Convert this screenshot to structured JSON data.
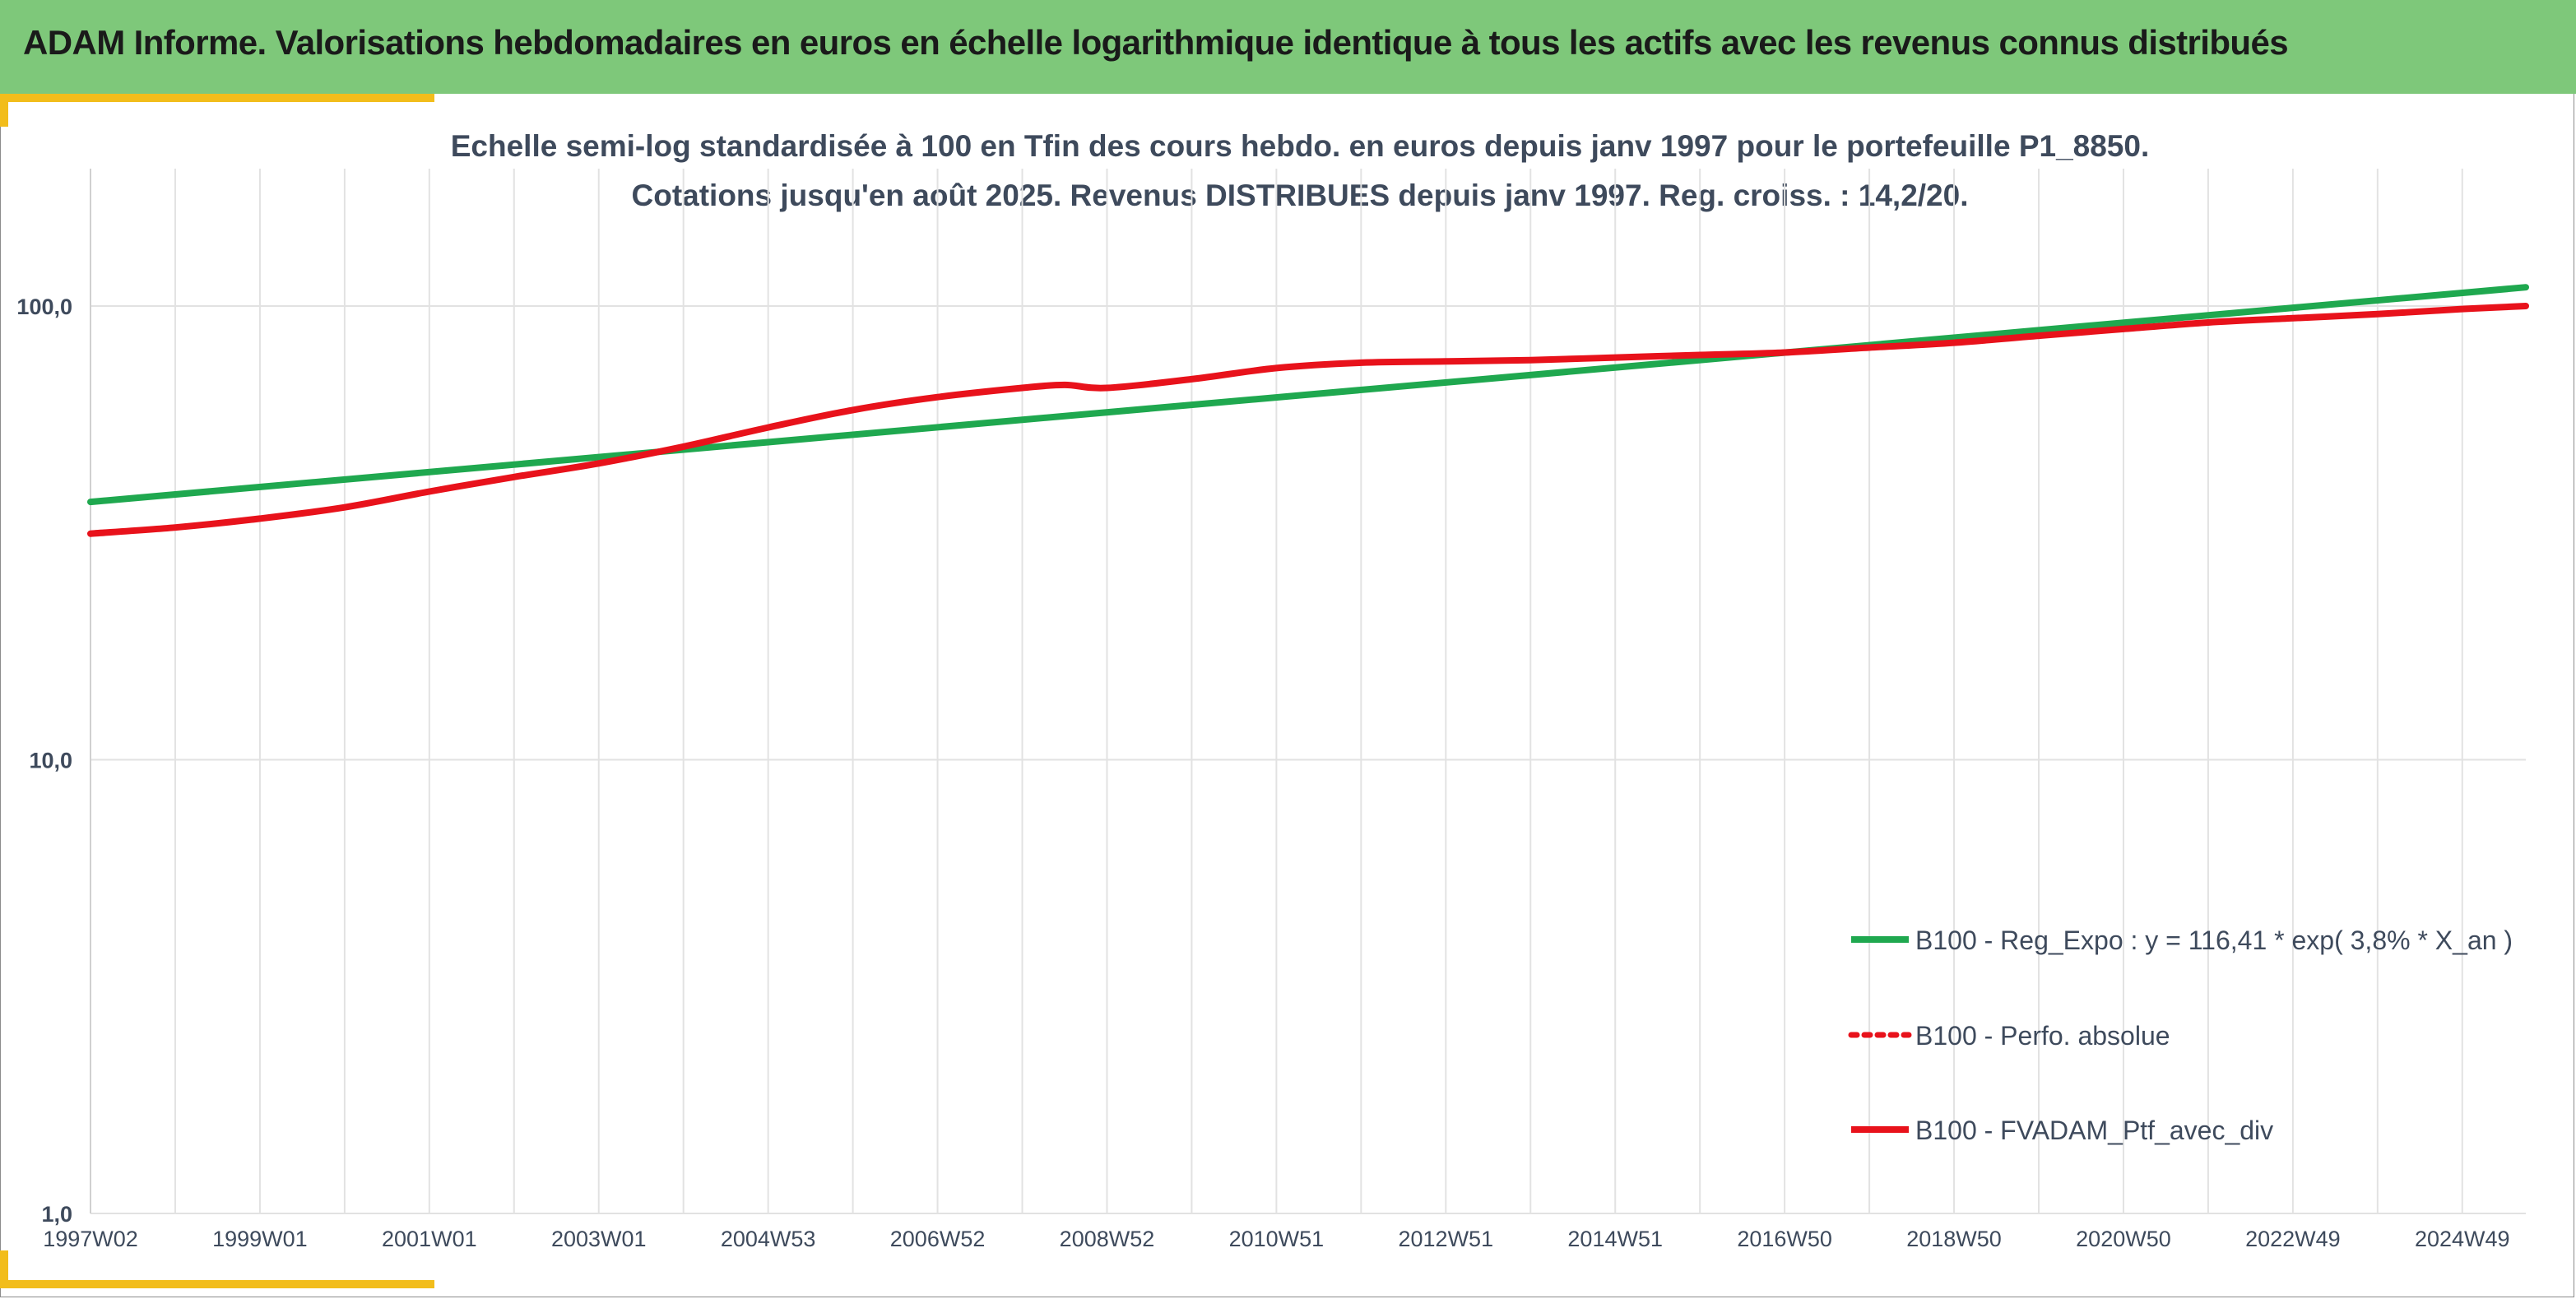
{
  "page": {
    "title": "ADAM Informe. Valorisations hebdomadaires en euros en échelle logarithmique identique à tous les actifs avec les revenus connus distribués"
  },
  "colors": {
    "banner": "#7ec87a",
    "accent": "#f2bd1b",
    "regression": "#1fa84f",
    "perf": "#e8121b",
    "grid": "#e2e2e2",
    "text": "#3e4a5c"
  },
  "chart_data": {
    "type": "line",
    "subtitle_lines": [
      "Echelle semi-log standardisée à 100 en Tfin des cours hebdo. en euros depuis janv 1997 pour le portefeuille P1_8850.",
      "Cotations jusqu'en août 2025. Revenus DISTRIBUES depuis janv 1997. Reg. croiss. : 14,2/20."
    ],
    "y_scale": "log",
    "ylim": [
      1,
      200
    ],
    "y_ticks": [
      {
        "value": 1,
        "label": "1,0"
      },
      {
        "value": 10,
        "label": "10,0"
      },
      {
        "value": 100,
        "label": "100,0"
      }
    ],
    "xlim": [
      1997.0,
      2025.75
    ],
    "x_ticks": [
      {
        "value": 1997.0,
        "label": "1997W02"
      },
      {
        "value": 1999.0,
        "label": "1999W01"
      },
      {
        "value": 2001.0,
        "label": "2001W01"
      },
      {
        "value": 2003.0,
        "label": "2003W01"
      },
      {
        "value": 2005.0,
        "label": "2004W53"
      },
      {
        "value": 2007.0,
        "label": "2006W52"
      },
      {
        "value": 2009.0,
        "label": "2008W52"
      },
      {
        "value": 2011.0,
        "label": "2010W51"
      },
      {
        "value": 2013.0,
        "label": "2012W51"
      },
      {
        "value": 2015.0,
        "label": "2014W51"
      },
      {
        "value": 2017.0,
        "label": "2016W50"
      },
      {
        "value": 2019.0,
        "label": "2018W50"
      },
      {
        "value": 2021.0,
        "label": "2020W50"
      },
      {
        "value": 2023.0,
        "label": "2022W49"
      },
      {
        "value": 2025.0,
        "label": "2024W49"
      }
    ],
    "grid": true,
    "legend_position": "bottom-right",
    "series": [
      {
        "name": "B100 - Reg_Expo : y = 116,41 * exp( 3,8% *  X_an )",
        "color": "#1fa84f",
        "style": "solid",
        "x": [
          1997.0,
          2025.75
        ],
        "y": [
          37.0,
          110.0
        ]
      },
      {
        "name": "B100 - Perfo. absolue",
        "color": "#e8121b",
        "style": "dotted",
        "x": [],
        "y": []
      },
      {
        "name": "B100 - FVADAM_Ptf_avec_div",
        "color": "#e8121b",
        "style": "solid",
        "x": [
          1997.0,
          1998.0,
          1999.0,
          2000.0,
          2001.0,
          2002.0,
          2003.0,
          2004.0,
          2005.0,
          2006.0,
          2007.0,
          2008.0,
          2008.5,
          2009.0,
          2010.0,
          2011.0,
          2012.0,
          2013.0,
          2014.0,
          2015.0,
          2016.0,
          2017.0,
          2018.0,
          2019.0,
          2020.0,
          2021.0,
          2022.0,
          2023.0,
          2024.0,
          2025.0,
          2025.75
        ],
        "y": [
          31.5,
          32.5,
          34.0,
          36.0,
          39.0,
          42.0,
          45.0,
          49.0,
          54.0,
          59.0,
          63.0,
          66.0,
          67.0,
          66.0,
          69.0,
          73.0,
          75.0,
          75.5,
          76.0,
          77.0,
          78.0,
          79.0,
          81.0,
          83.0,
          86.0,
          89.0,
          92.0,
          94.0,
          96.0,
          98.5,
          100.0
        ]
      }
    ]
  }
}
